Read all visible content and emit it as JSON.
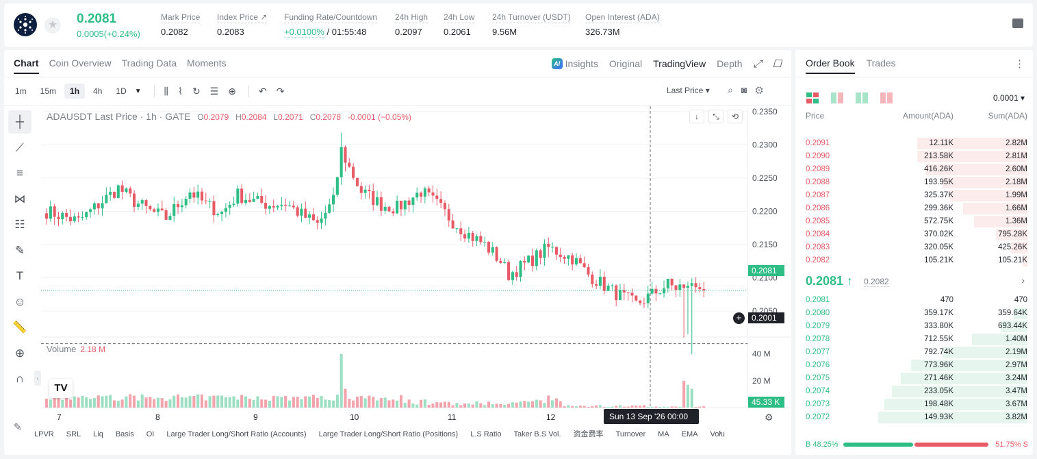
{
  "header": {
    "last_price": "0.2081",
    "change": "0.0005(+0.24%)",
    "stats": [
      {
        "label": "Mark Price",
        "value": "0.2082"
      },
      {
        "label": "Index Price ↗",
        "value": "0.2083"
      },
      {
        "label": "Funding Rate/Countdown",
        "value_green": "+0.0100%",
        "value": " / 01:55:48"
      },
      {
        "label": "24h High",
        "value": "0.2097"
      },
      {
        "label": "24h Low",
        "value": "0.2061"
      },
      {
        "label": "24h Turnover (USDT)",
        "value": "9.56M"
      },
      {
        "label": "Open Interest (ADA)",
        "value": "326.73M"
      }
    ]
  },
  "chart_tabs": [
    "Chart",
    "Coin Overview",
    "Trading Data",
    "Moments"
  ],
  "chart_views": {
    "insights": "Insights",
    "original": "Original",
    "tradingview": "TradingView",
    "depth": "Depth"
  },
  "intervals": [
    "1m",
    "15m",
    "1h",
    "4h",
    "1D"
  ],
  "price_type": "Last Price ▾",
  "legend": {
    "symbol": "ADAUSDT Last Price · 1h · GATE",
    "o": "0.2079",
    "h": "0.2084",
    "l": "0.2071",
    "c": "0.2078",
    "chg": "-0.0001 (−0.05%)"
  },
  "volume_legend": {
    "label": "Volume",
    "value": "2.18 M"
  },
  "current_price_tag": "0.2081",
  "crosshair_price_tag": "0.2001",
  "volume_tag": "45.33 K",
  "date_tooltip": "Sun 13 Sep '26   00:00",
  "indicators": [
    "LPVR",
    "SRL",
    "Liq",
    "Basis",
    "OI",
    "Large Trader Long/Short Ratio (Accounts)",
    "Large Trader Long/Short Ratio (Positions)",
    "L.S Ratio",
    "Taker B.S Vol.",
    "资金费率",
    "Turnover",
    "MA",
    "EMA",
    "Volu"
  ],
  "chart_data": {
    "type": "candlestick",
    "title": "ADAUSDT Last Price · 1h · GATE",
    "price_axis_ticks": [
      "0.2350",
      "0.2300",
      "0.2250",
      "0.2200",
      "0.2150",
      "0.2100",
      "0.2050"
    ],
    "price_range": [
      0.2012,
      0.2358
    ],
    "volume_axis_ticks": [
      "40 M",
      "20 M"
    ],
    "volume_max": 48,
    "x_ticks": [
      "7",
      "8",
      "9",
      "10",
      "11",
      "12"
    ],
    "candle_count": 166,
    "close_path": [
      [
        0,
        0.22
      ],
      [
        8,
        0.2185
      ],
      [
        14,
        0.2215
      ],
      [
        18,
        0.2235
      ],
      [
        22,
        0.2215
      ],
      [
        26,
        0.22
      ],
      [
        30,
        0.219
      ],
      [
        36,
        0.223
      ],
      [
        40,
        0.221
      ],
      [
        44,
        0.2198
      ],
      [
        48,
        0.2225
      ],
      [
        52,
        0.2215
      ],
      [
        56,
        0.221
      ],
      [
        60,
        0.2212
      ],
      [
        64,
        0.2195
      ],
      [
        68,
        0.218
      ],
      [
        72,
        0.2215
      ],
      [
        74,
        0.2292
      ],
      [
        76,
        0.2265
      ],
      [
        79,
        0.223
      ],
      [
        84,
        0.221
      ],
      [
        88,
        0.2205
      ],
      [
        94,
        0.223
      ],
      [
        98,
        0.221
      ],
      [
        102,
        0.2185
      ],
      [
        106,
        0.2165
      ],
      [
        110,
        0.215
      ],
      [
        114,
        0.2125
      ],
      [
        116,
        0.2105
      ],
      [
        120,
        0.212
      ],
      [
        126,
        0.2145
      ],
      [
        132,
        0.213
      ],
      [
        136,
        0.2105
      ],
      [
        142,
        0.208
      ],
      [
        148,
        0.206
      ],
      [
        152,
        0.2075
      ],
      [
        156,
        0.209
      ],
      [
        160,
        0.208
      ],
      [
        162,
        0.2035
      ],
      [
        164,
        0.206
      ],
      [
        166,
        0.214
      ]
    ],
    "last_candles_close": [
      0.209,
      0.2085,
      0.2088,
      0.2092,
      0.2086,
      0.2083,
      0.2081
    ]
  },
  "orderbook": {
    "tabs": [
      "Order Book",
      "Trades"
    ],
    "tick": "0.0001 ▾",
    "headers": {
      "price": "Price",
      "amount": "Amount(ADA)",
      "sum": "Sum(ADA)"
    },
    "asks": [
      {
        "price": "0.2091",
        "amount": "12.11K",
        "sum": "2.82M",
        "depth": 0.74
      },
      {
        "price": "0.2090",
        "amount": "213.58K",
        "sum": "2.81M",
        "depth": 0.74
      },
      {
        "price": "0.2089",
        "amount": "416.26K",
        "sum": "2.60M",
        "depth": 0.68
      },
      {
        "price": "0.2088",
        "amount": "193.95K",
        "sum": "2.18M",
        "depth": 0.57
      },
      {
        "price": "0.2087",
        "amount": "325.37K",
        "sum": "1.99M",
        "depth": 0.52
      },
      {
        "price": "0.2086",
        "amount": "299.36K",
        "sum": "1.66M",
        "depth": 0.43
      },
      {
        "price": "0.2085",
        "amount": "572.75K",
        "sum": "1.36M",
        "depth": 0.36
      },
      {
        "price": "0.2084",
        "amount": "370.02K",
        "sum": "795.28K",
        "depth": 0.21
      },
      {
        "price": "0.2083",
        "amount": "320.05K",
        "sum": "425.26K",
        "depth": 0.11
      },
      {
        "price": "0.2082",
        "amount": "105.21K",
        "sum": "105.21K",
        "depth": 0.03
      }
    ],
    "mid_price": "0.2081 ↑",
    "mark_price": "0.2082",
    "bids": [
      {
        "price": "0.2081",
        "amount": "470",
        "sum": "470",
        "depth": 0.0
      },
      {
        "price": "0.2080",
        "amount": "359.17K",
        "sum": "359.64K",
        "depth": 0.09
      },
      {
        "price": "0.2079",
        "amount": "333.80K",
        "sum": "693.44K",
        "depth": 0.18
      },
      {
        "price": "0.2078",
        "amount": "712.55K",
        "sum": "1.40M",
        "depth": 0.37
      },
      {
        "price": "0.2077",
        "amount": "792.74K",
        "sum": "2.19M",
        "depth": 0.57
      },
      {
        "price": "0.2076",
        "amount": "773.96K",
        "sum": "2.97M",
        "depth": 0.78
      },
      {
        "price": "0.2075",
        "amount": "271.46K",
        "sum": "3.24M",
        "depth": 0.85
      },
      {
        "price": "0.2074",
        "amount": "233.05K",
        "sum": "3.47M",
        "depth": 0.91
      },
      {
        "price": "0.2073",
        "amount": "198.48K",
        "sum": "3.67M",
        "depth": 0.96
      },
      {
        "price": "0.2072",
        "amount": "149.93K",
        "sum": "3.82M",
        "depth": 1.0
      }
    ],
    "buy_ratio": "B 48.25%",
    "sell_ratio": "51.75% S",
    "buy_fraction": 0.4825
  },
  "colors": {
    "up": "#2ebd85",
    "down": "#e75b67",
    "up_bg": "#e6f6ee",
    "down_bg": "#fdecec"
  }
}
